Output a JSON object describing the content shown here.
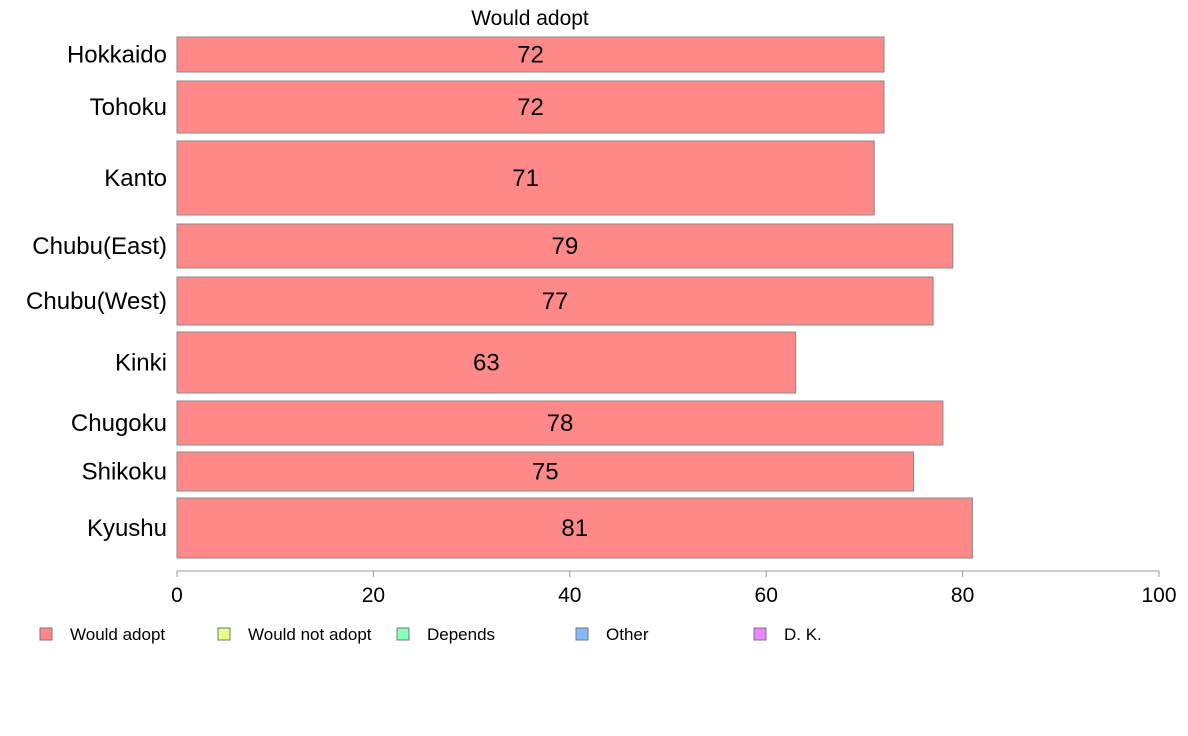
{
  "chart_data": {
    "type": "bar",
    "orientation": "horizontal",
    "title": "Would adopt",
    "xlabel": "",
    "ylabel": "",
    "xlim": [
      0,
      100
    ],
    "xticks": [
      0,
      20,
      40,
      60,
      80,
      100
    ],
    "grid": false,
    "legend_position": "bottom",
    "categories": [
      "Hokkaido",
      "Tohoku",
      "Kanto",
      "Chubu(East)",
      "Chubu(West)",
      "Kinki",
      "Chugoku",
      "Shikoku",
      "Kyushu"
    ],
    "series": [
      {
        "name": "Would adopt",
        "color": "#ff8888",
        "values": [
          72,
          72,
          71,
          79,
          77,
          63,
          78,
          75,
          81
        ]
      }
    ],
    "legend": [
      {
        "label": "Would adopt",
        "color": "#ff8888"
      },
      {
        "label": "Would not adopt",
        "color": "#e6ff88"
      },
      {
        "label": "Depends",
        "color": "#88ffb8"
      },
      {
        "label": "Other",
        "color": "#88b8ff"
      },
      {
        "label": "D. K.",
        "color": "#e888ff"
      }
    ]
  }
}
